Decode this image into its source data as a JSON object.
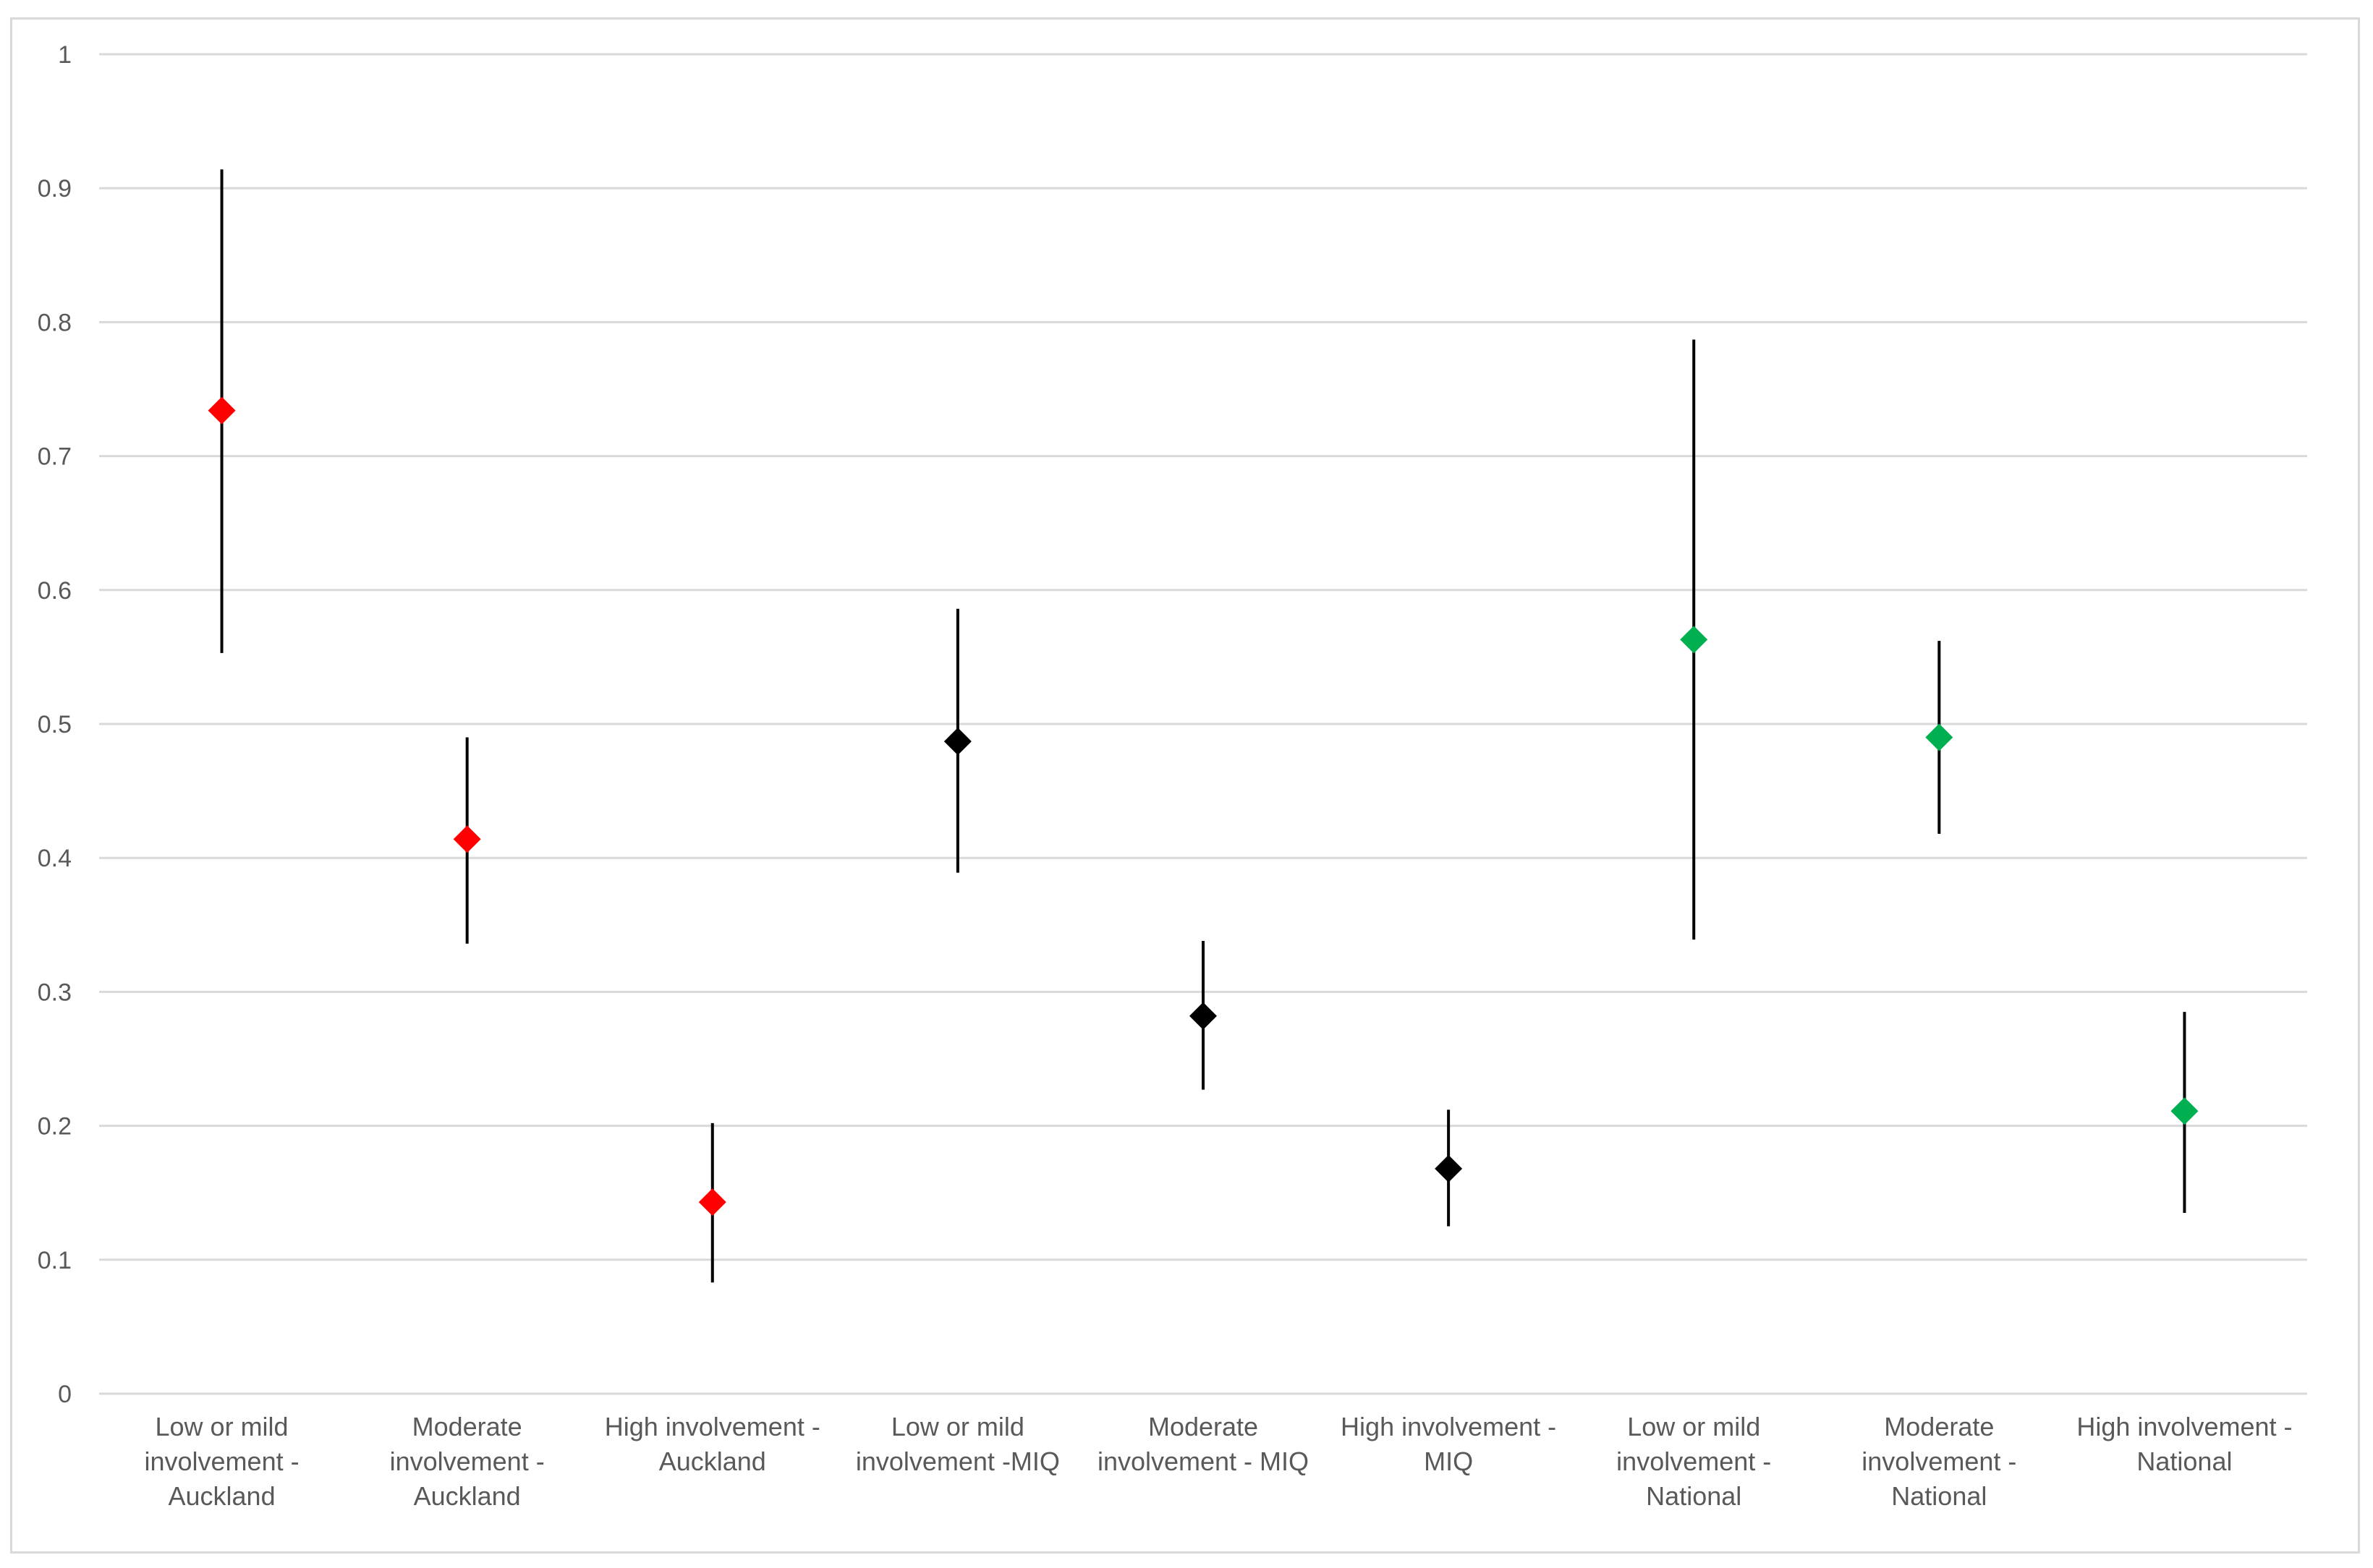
{
  "chart_data": {
    "type": "scatter",
    "title": "",
    "xlabel": "",
    "ylabel": "",
    "ylim": [
      0,
      1
    ],
    "yticks": [
      0,
      0.1,
      0.2,
      0.3,
      0.4,
      0.5,
      0.6,
      0.7,
      0.8,
      0.9,
      1
    ],
    "ytick_labels": [
      "0",
      "0.1",
      "0.2",
      "0.3",
      "0.4",
      "0.5",
      "0.6",
      "0.7",
      "0.8",
      "0.9",
      "1"
    ],
    "grid": true,
    "categories": [
      [
        "Low or mild",
        "involvement -",
        "Auckland"
      ],
      [
        "Moderate",
        "involvement -",
        "Auckland"
      ],
      [
        "High involvement -",
        "Auckland"
      ],
      [
        "Low or mild",
        "involvement -MIQ"
      ],
      [
        "Moderate",
        "involvement - MIQ"
      ],
      [
        "High involvement -",
        "MIQ"
      ],
      [
        "Low or mild",
        "involvement -",
        "National"
      ],
      [
        "Moderate",
        "involvement -",
        "National"
      ],
      [
        "High involvement -",
        "National"
      ]
    ],
    "points": [
      {
        "value": 0.734,
        "lower": 0.553,
        "upper": 0.914,
        "color": "#ff0000"
      },
      {
        "value": 0.414,
        "lower": 0.336,
        "upper": 0.49,
        "color": "#ff0000"
      },
      {
        "value": 0.143,
        "lower": 0.083,
        "upper": 0.202,
        "color": "#ff0000"
      },
      {
        "value": 0.487,
        "lower": 0.389,
        "upper": 0.586,
        "color": "#000000"
      },
      {
        "value": 0.282,
        "lower": 0.227,
        "upper": 0.338,
        "color": "#000000"
      },
      {
        "value": 0.168,
        "lower": 0.125,
        "upper": 0.212,
        "color": "#000000"
      },
      {
        "value": 0.563,
        "lower": 0.339,
        "upper": 0.787,
        "color": "#00b050"
      },
      {
        "value": 0.49,
        "lower": 0.418,
        "upper": 0.562,
        "color": "#00b050"
      },
      {
        "value": 0.211,
        "lower": 0.135,
        "upper": 0.285,
        "color": "#00b050"
      }
    ]
  }
}
